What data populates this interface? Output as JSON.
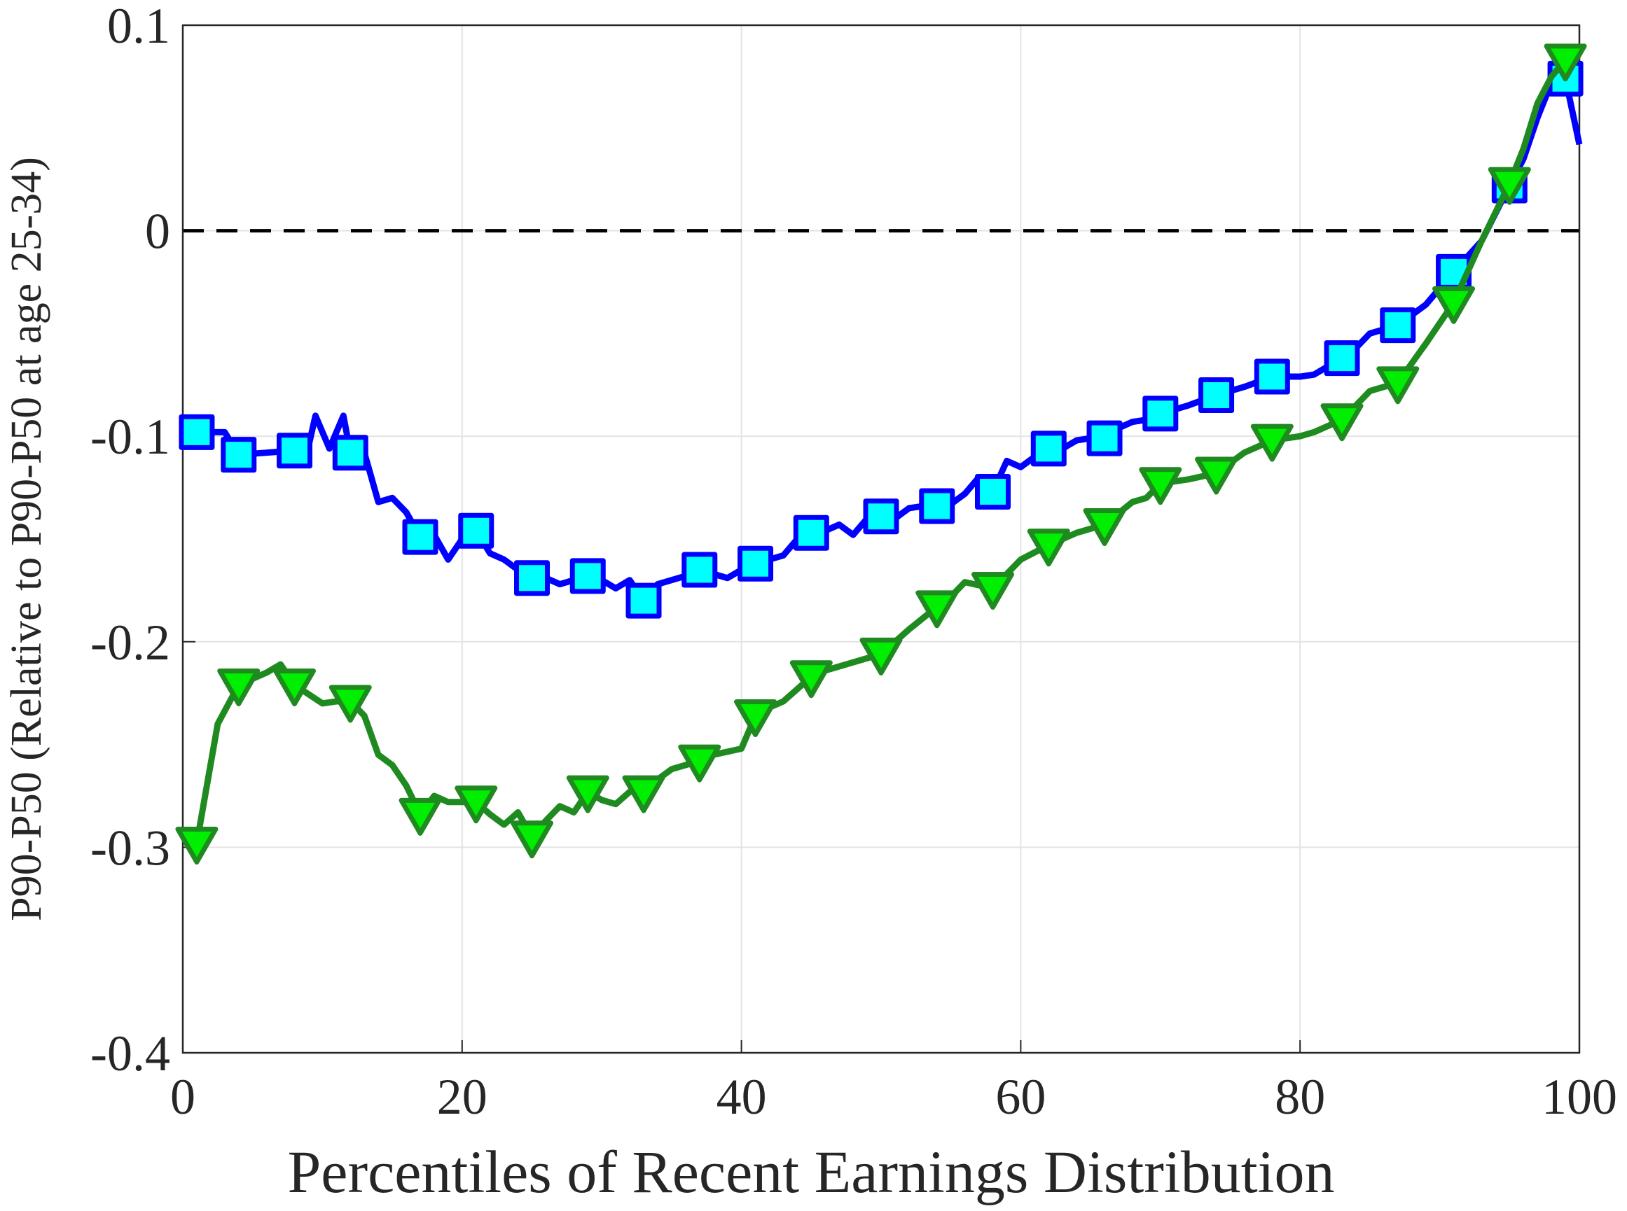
{
  "chart_data": {
    "type": "line",
    "xlabel": "Percentiles of Recent Earnings Distribution",
    "ylabel": "P90-P50 (Relative to P90-P50 at age 25-34)",
    "xlim": [
      0,
      100
    ],
    "xticks": [
      0,
      20,
      40,
      60,
      80,
      100
    ],
    "ylim": [
      -0.4,
      0.1
    ],
    "yticks": [
      -0.4,
      -0.3,
      -0.2,
      -0.1,
      0,
      0.1
    ],
    "grid": true,
    "hlines": [
      {
        "value": 0,
        "color": "#000000",
        "linestyle": "dashed"
      }
    ],
    "series": [
      {
        "color": "#0000ff",
        "linestyle": "solid",
        "marker": "none",
        "x": [
          1,
          3,
          4,
          6,
          8,
          9,
          9.5,
          10.5,
          11.5,
          12,
          13,
          14,
          15,
          16,
          17,
          18,
          19,
          20,
          21,
          22,
          23,
          24,
          25,
          26,
          27,
          28,
          29,
          30,
          31,
          32,
          33,
          34,
          35,
          36,
          37,
          38,
          39,
          40,
          41,
          42,
          43,
          44,
          45,
          46,
          47,
          48,
          49,
          50,
          51,
          52,
          53,
          54,
          55,
          56,
          57,
          58,
          59,
          60,
          61,
          62,
          63,
          64,
          65,
          66,
          67,
          68,
          69,
          70,
          72,
          74,
          76,
          78,
          80,
          81,
          83,
          84,
          85,
          87,
          89,
          91,
          93,
          95,
          96,
          97,
          98,
          99,
          100
        ],
        "values": [
          -0.098,
          -0.098,
          -0.109,
          -0.108,
          -0.107,
          -0.105,
          -0.09,
          -0.106,
          -0.09,
          -0.108,
          -0.108,
          -0.132,
          -0.13,
          -0.137,
          -0.149,
          -0.148,
          -0.16,
          -0.15,
          -0.146,
          -0.157,
          -0.16,
          -0.165,
          -0.169,
          -0.169,
          -0.172,
          -0.17,
          -0.168,
          -0.17,
          -0.174,
          -0.17,
          -0.18,
          -0.172,
          -0.17,
          -0.168,
          -0.165,
          -0.167,
          -0.169,
          -0.165,
          -0.162,
          -0.16,
          -0.158,
          -0.15,
          -0.147,
          -0.146,
          -0.143,
          -0.148,
          -0.14,
          -0.139,
          -0.14,
          -0.135,
          -0.134,
          -0.134,
          -0.133,
          -0.128,
          -0.12,
          -0.127,
          -0.112,
          -0.115,
          -0.11,
          -0.106,
          -0.106,
          -0.102,
          -0.101,
          -0.101,
          -0.096,
          -0.093,
          -0.092,
          -0.089,
          -0.085,
          -0.08,
          -0.076,
          -0.071,
          -0.071,
          -0.07,
          -0.062,
          -0.057,
          -0.05,
          -0.046,
          -0.036,
          -0.02,
          -0.005,
          0.022,
          0.035,
          0.055,
          0.072,
          0.074,
          0.042
        ]
      },
      {
        "color": "#0000ff",
        "linestyle": "none",
        "marker": "square",
        "markerfacecolor": "#00ffff",
        "x": [
          1,
          4,
          8,
          12,
          17,
          21,
          25,
          29,
          33,
          37,
          41,
          45,
          50,
          54,
          58,
          62,
          66,
          70,
          74,
          78,
          83,
          87,
          91,
          95,
          99
        ],
        "values": [
          -0.098,
          -0.109,
          -0.107,
          -0.108,
          -0.149,
          -0.146,
          -0.169,
          -0.168,
          -0.18,
          -0.165,
          -0.162,
          -0.147,
          -0.139,
          -0.134,
          -0.127,
          -0.106,
          -0.101,
          -0.089,
          -0.08,
          -0.071,
          -0.062,
          -0.046,
          -0.02,
          0.022,
          0.074
        ]
      },
      {
        "color": "#1f8a1f",
        "linestyle": "solid",
        "marker": "none",
        "x": [
          1,
          2.5,
          4,
          6,
          7,
          8,
          10,
          11,
          12,
          13,
          14,
          15,
          16,
          17,
          18,
          19,
          20,
          21,
          22,
          23,
          24,
          25,
          26,
          27,
          28,
          29,
          30,
          31,
          32,
          33,
          34,
          35,
          36,
          37,
          38,
          40,
          41,
          42,
          43,
          44,
          45,
          46,
          48,
          50,
          52,
          54,
          55,
          56,
          58,
          60,
          62,
          64,
          66,
          68,
          69,
          70,
          72,
          74,
          76,
          78,
          80,
          81,
          83,
          85,
          87,
          89,
          91,
          93,
          95,
          96,
          97,
          98,
          99
        ],
        "values": [
          -0.298,
          -0.24,
          -0.221,
          -0.215,
          -0.211,
          -0.221,
          -0.23,
          -0.229,
          -0.229,
          -0.236,
          -0.255,
          -0.26,
          -0.27,
          -0.284,
          -0.275,
          -0.278,
          -0.278,
          -0.278,
          -0.284,
          -0.289,
          -0.283,
          -0.295,
          -0.287,
          -0.28,
          -0.283,
          -0.273,
          -0.277,
          -0.279,
          -0.273,
          -0.273,
          -0.267,
          -0.262,
          -0.26,
          -0.258,
          -0.255,
          -0.252,
          -0.236,
          -0.232,
          -0.229,
          -0.223,
          -0.217,
          -0.214,
          -0.21,
          -0.206,
          -0.194,
          -0.183,
          -0.178,
          -0.171,
          -0.174,
          -0.16,
          -0.153,
          -0.147,
          -0.143,
          -0.132,
          -0.13,
          -0.123,
          -0.121,
          -0.118,
          -0.108,
          -0.102,
          -0.1,
          -0.098,
          -0.092,
          -0.078,
          -0.074,
          -0.055,
          -0.035,
          -0.005,
          0.023,
          0.04,
          0.062,
          0.075,
          0.083
        ]
      },
      {
        "color": "#1f8a1f",
        "linestyle": "none",
        "marker": "triangle-down",
        "markerfacecolor": "#00ee00",
        "x": [
          1,
          4,
          8,
          12,
          17,
          21,
          25,
          29,
          33,
          37,
          41,
          45,
          50,
          54,
          58,
          62,
          66,
          70,
          74,
          78,
          83,
          87,
          91,
          95,
          99
        ],
        "values": [
          -0.298,
          -0.221,
          -0.221,
          -0.229,
          -0.284,
          -0.278,
          -0.295,
          -0.273,
          -0.273,
          -0.258,
          -0.236,
          -0.217,
          -0.206,
          -0.183,
          -0.174,
          -0.153,
          -0.143,
          -0.123,
          -0.118,
          -0.102,
          -0.092,
          -0.074,
          -0.035,
          0.023,
          0.083
        ]
      }
    ]
  }
}
